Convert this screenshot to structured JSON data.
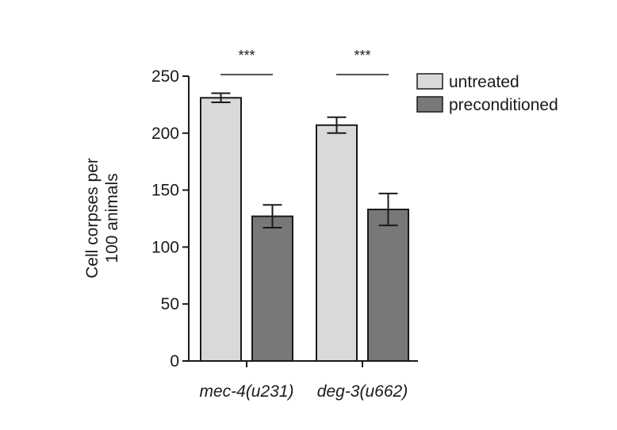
{
  "chart_data": {
    "type": "bar",
    "ylabel": [
      "Cell corpses per",
      "100 animals"
    ],
    "ylim": [
      0,
      250
    ],
    "yticks": [
      "0",
      "50",
      "100",
      "150",
      "200",
      "250"
    ],
    "categories": [
      "mec-4(u231)",
      "deg-3(u662)"
    ],
    "series": [
      {
        "name": "untreated",
        "color": "#d9d9d9",
        "values": [
          231,
          207
        ],
        "errors": [
          4,
          7
        ]
      },
      {
        "name": " preconditioned",
        "color": "#787878",
        "values": [
          127,
          133
        ],
        "errors": [
          10,
          14
        ]
      }
    ],
    "significance": [
      "***",
      "***"
    ],
    "legend_position": "top-right"
  }
}
